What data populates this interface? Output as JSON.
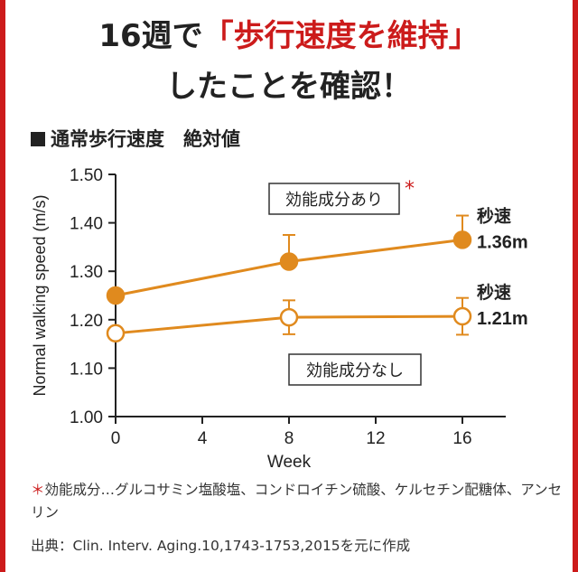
{
  "headline": {
    "line1_prefix": "16週で",
    "line1_highlight": "「歩行速度を維持」",
    "line2": "したことを確認！"
  },
  "section_title": "通常歩行速度　絶対値",
  "chart_data": {
    "type": "line",
    "x": [
      0,
      8,
      16
    ],
    "xlabel": "Week",
    "ylabel": "Normal walking speed (m/s)",
    "xlim": [
      0,
      18
    ],
    "ylim": [
      1.0,
      1.5
    ],
    "xticks": [
      0,
      4,
      8,
      12,
      16
    ],
    "yticks": [
      1.0,
      1.1,
      1.2,
      1.3,
      1.4,
      1.5
    ],
    "ytick_labels": [
      "1.00",
      "1.10",
      "1.20",
      "1.30",
      "1.40",
      "1.50"
    ],
    "series": [
      {
        "name": "効能成分あり",
        "values": [
          1.25,
          1.32,
          1.365
        ],
        "error": [
          0,
          0.055,
          0.05
        ],
        "marker": "filled",
        "color": "#e08a1e",
        "significance": "*",
        "end_label_line1": "秒速",
        "end_label_line2": "1.36m"
      },
      {
        "name": "効能成分なし",
        "values": [
          1.172,
          1.205,
          1.207
        ],
        "error": [
          0,
          0.035,
          0.038
        ],
        "marker": "open",
        "color": "#e08a1e",
        "end_label_line1": "秒速",
        "end_label_line2": "1.21m"
      }
    ]
  },
  "footnote": {
    "asterisk": "＊",
    "text": "効能成分…グルコサミン塩酸塩、コンドロイチン硫酸、ケルセチン配糖体、アンセリン"
  },
  "source": "出典：Clin. Interv. Aging.10,1743-1753,2015を元に作成",
  "colors": {
    "accent_red": "#cc1b1b",
    "series_orange": "#e08a1e"
  }
}
